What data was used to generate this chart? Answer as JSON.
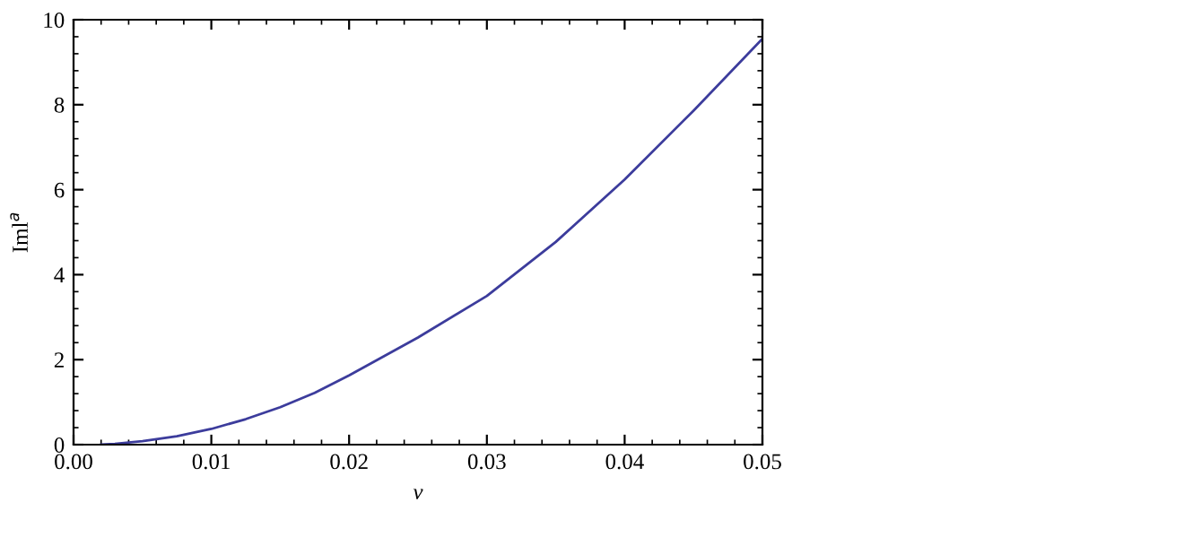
{
  "chart_data": {
    "type": "line",
    "xlabel": "v",
    "ylabel": "Iml$^{a}$",
    "x": [
      0.002,
      0.003,
      0.005,
      0.0075,
      0.01,
      0.0125,
      0.015,
      0.0175,
      0.02,
      0.025,
      0.03,
      0.035,
      0.04,
      0.045,
      0.05
    ],
    "series": [
      {
        "color": "#3c3c9c",
        "values": [
          0.0,
          0.02,
          0.08,
          0.2,
          0.37,
          0.6,
          0.88,
          1.22,
          1.63,
          2.52,
          3.5,
          4.77,
          6.24,
          7.86,
          9.55
        ]
      }
    ],
    "xlim": [
      0,
      0.05
    ],
    "ylim": [
      0,
      10
    ],
    "xticks": [
      {
        "value": 0,
        "label": "0.00"
      },
      0.01,
      0.02,
      0.03,
      0.04,
      0.05
    ],
    "yticks": [
      0,
      2,
      4,
      6,
      8,
      10
    ],
    "grid": false,
    "legend": false,
    "marker": "none",
    "line_style": "solid"
  }
}
